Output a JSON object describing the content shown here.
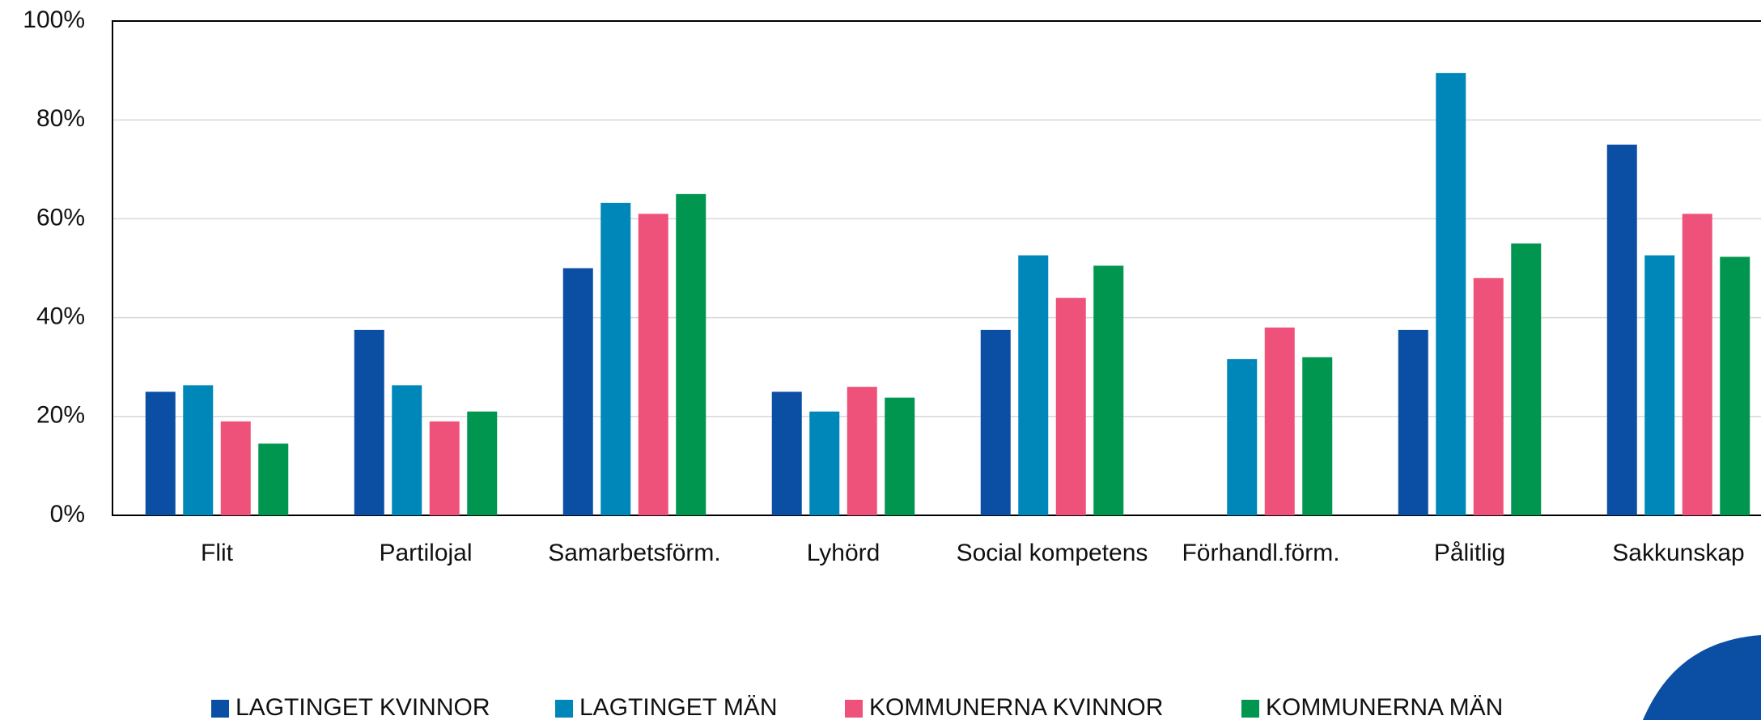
{
  "chart_data": {
    "type": "bar",
    "categories": [
      "Flit",
      "Partilojal",
      "Samarbetsförm.",
      "Lyhörd",
      "Social kompetens",
      "Förhandl.förm.",
      "Pålitlig",
      "Sakkunskap"
    ],
    "series": [
      {
        "name": "LAGTINGET KVINNOR",
        "color": "#0a4fa3",
        "values": [
          25,
          37.5,
          50,
          25,
          37.5,
          0,
          37.5,
          75
        ]
      },
      {
        "name": "LAGTINGET MÄN",
        "color": "#0087b9",
        "values": [
          26.3,
          26.3,
          63.2,
          21,
          52.6,
          31.6,
          89.5,
          52.6
        ]
      },
      {
        "name": "KOMMUNERNA KVINNOR",
        "color": "#ee527a",
        "values": [
          19,
          19,
          61,
          26,
          44,
          38,
          48,
          61
        ]
      },
      {
        "name": "KOMMUNERNA MÄN",
        "color": "#009650",
        "values": [
          14.5,
          21,
          65,
          23.8,
          50.5,
          32,
          55,
          52.3
        ]
      }
    ],
    "ylim": [
      0,
      100
    ],
    "yticks": [
      {
        "value": 0,
        "label": "0%"
      },
      {
        "value": 20,
        "label": "20%"
      },
      {
        "value": 40,
        "label": "40%"
      },
      {
        "value": 60,
        "label": "60%"
      },
      {
        "value": 80,
        "label": "80%"
      },
      {
        "value": 100,
        "label": "100%"
      }
    ],
    "grid": true,
    "legend": "bottom"
  }
}
